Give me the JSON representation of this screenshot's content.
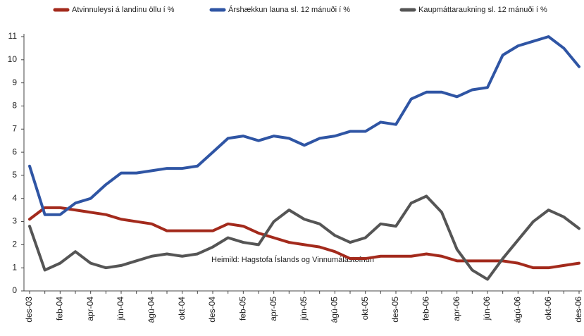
{
  "chart_data": {
    "type": "line",
    "categories": [
      "des-03",
      null,
      "feb-04",
      null,
      "apr-04",
      null,
      "jún-04",
      null,
      "ágú-04",
      null,
      "okt-04",
      null,
      "des-04",
      null,
      "feb-05",
      null,
      "apr-05",
      null,
      "jún-05",
      null,
      "ágú-05",
      null,
      "okt-05",
      null,
      "des-05",
      null,
      "feb-06",
      null,
      "apr-06",
      null,
      "jún-06",
      null,
      "ágú-06",
      null,
      "okt-06",
      null,
      "des-06"
    ],
    "series": [
      {
        "name": "Atvinnuleysi á landinu öllu í %",
        "color": "#a32a1c",
        "values": [
          3.1,
          3.6,
          3.6,
          3.5,
          3.4,
          3.3,
          3.1,
          3.0,
          2.9,
          2.6,
          2.6,
          2.6,
          2.6,
          2.9,
          2.8,
          2.5,
          2.3,
          2.1,
          2.0,
          1.9,
          1.7,
          1.4,
          1.4,
          1.5,
          1.5,
          1.5,
          1.6,
          1.5,
          1.3,
          1.3,
          1.3,
          1.3,
          1.2,
          1.0,
          1.0,
          1.1,
          1.2
        ]
      },
      {
        "name": "Árshækkun launa sl. 12 mánuði í %",
        "color": "#2f55a4",
        "values": [
          5.4,
          3.3,
          3.3,
          3.8,
          4.0,
          4.6,
          5.1,
          5.1,
          5.2,
          5.3,
          5.3,
          5.4,
          6.0,
          6.6,
          6.7,
          6.5,
          6.7,
          6.6,
          6.3,
          6.6,
          6.7,
          6.9,
          6.9,
          7.3,
          7.2,
          8.3,
          8.6,
          8.6,
          8.4,
          8.7,
          8.8,
          10.2,
          10.6,
          10.8,
          11.0,
          10.5,
          9.7
        ]
      },
      {
        "name": "Kaupmáttaraukning sl. 12 mánuði í %",
        "color": "#555555",
        "values": [
          2.8,
          0.9,
          1.2,
          1.7,
          1.2,
          1.0,
          1.1,
          1.3,
          1.5,
          1.6,
          1.5,
          1.6,
          1.9,
          2.3,
          2.1,
          2.0,
          3.0,
          3.5,
          3.1,
          2.9,
          2.4,
          2.1,
          2.3,
          2.9,
          2.8,
          3.8,
          4.1,
          3.4,
          1.8,
          0.9,
          0.5,
          1.4,
          2.2,
          3.0,
          3.5,
          3.2,
          2.7
        ]
      }
    ],
    "ylim": [
      0,
      11
    ],
    "yticks": [
      0,
      1,
      2,
      3,
      4,
      5,
      6,
      7,
      8,
      9,
      10,
      11
    ],
    "annotation": "Heimild: Hagstofa Íslands og Vinnumálastofnun",
    "legend": "top"
  }
}
